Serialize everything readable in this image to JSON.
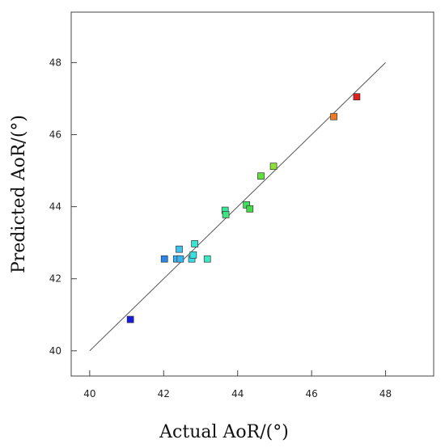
{
  "chart_data": {
    "type": "scatter",
    "title": "",
    "xlabel": "Actual AoR/(°)",
    "ylabel": "Predicted AoR/(°)",
    "xlim": [
      39.5,
      49.3
    ],
    "ylim": [
      39.3,
      49.4
    ],
    "xticks": [
      40,
      42,
      44,
      46,
      48
    ],
    "yticks": [
      40,
      42,
      44,
      46,
      48
    ],
    "grid": false,
    "legend": "none",
    "reference_line": {
      "x": [
        40,
        48
      ],
      "y": [
        40,
        48
      ],
      "color": "#555555"
    },
    "marker": "square",
    "series": [
      {
        "points": [
          {
            "x": 41.1,
            "y": 40.87,
            "color": "#1a1adf"
          },
          {
            "x": 42.02,
            "y": 42.55,
            "color": "#2a86e8"
          },
          {
            "x": 42.35,
            "y": 42.55,
            "color": "#39aef0"
          },
          {
            "x": 42.45,
            "y": 42.55,
            "color": "#39b6f0"
          },
          {
            "x": 42.42,
            "y": 42.82,
            "color": "#3fc3ef"
          },
          {
            "x": 42.76,
            "y": 42.55,
            "color": "#38dcea"
          },
          {
            "x": 42.8,
            "y": 42.66,
            "color": "#39e0e2"
          },
          {
            "x": 42.84,
            "y": 42.97,
            "color": "#39e6d2"
          },
          {
            "x": 43.18,
            "y": 42.55,
            "color": "#3ee8c4"
          },
          {
            "x": 43.66,
            "y": 43.9,
            "color": "#35e69a"
          },
          {
            "x": 43.68,
            "y": 43.78,
            "color": "#3ee382"
          },
          {
            "x": 44.24,
            "y": 44.05,
            "color": "#3fe060"
          },
          {
            "x": 44.33,
            "y": 43.94,
            "color": "#42dc48"
          },
          {
            "x": 44.63,
            "y": 44.85,
            "color": "#5fe03a"
          },
          {
            "x": 44.97,
            "y": 45.12,
            "color": "#8ee038"
          },
          {
            "x": 46.6,
            "y": 46.5,
            "color": "#f07a24"
          },
          {
            "x": 47.22,
            "y": 47.05,
            "color": "#e21e1e"
          }
        ]
      }
    ]
  }
}
